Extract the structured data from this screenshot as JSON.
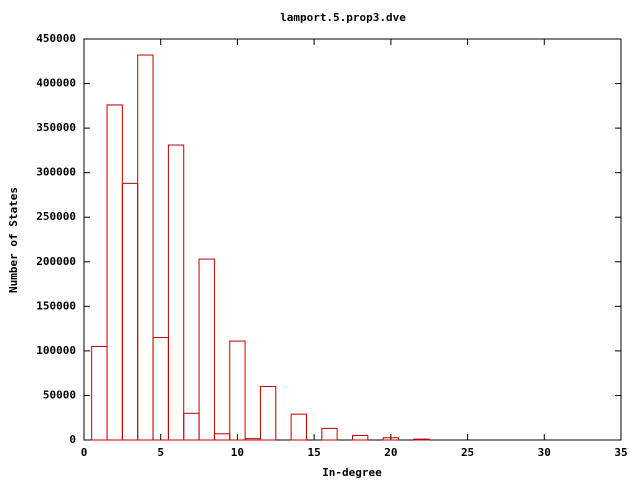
{
  "chart_data": {
    "type": "bar",
    "title": "lamport.5.prop3.dve",
    "xlabel": "In-degree",
    "ylabel": "Number of States",
    "x": [
      1,
      2,
      3,
      4,
      5,
      6,
      7,
      8,
      9,
      10,
      11,
      12,
      14,
      16,
      18,
      20,
      22
    ],
    "values": [
      105000,
      376000,
      288000,
      432000,
      115000,
      331000,
      30000,
      203000,
      7000,
      111000,
      1500,
      60000,
      29000,
      13000,
      5000,
      2500,
      1000
    ],
    "bar_width": 1,
    "color": "#c00000",
    "xlim": [
      0,
      35
    ],
    "xticks": [
      0,
      5,
      10,
      15,
      20,
      25,
      30,
      35
    ],
    "ylim": [
      0,
      450000
    ],
    "yticks": [
      0,
      50000,
      100000,
      150000,
      200000,
      250000,
      300000,
      350000,
      400000,
      450000
    ]
  }
}
